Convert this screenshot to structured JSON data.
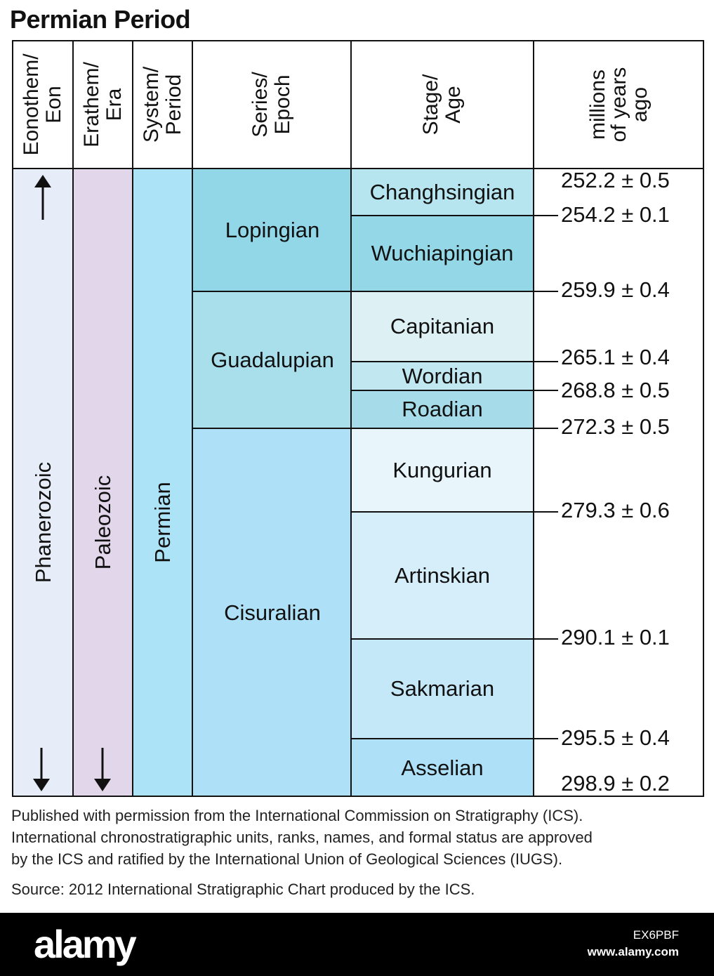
{
  "title": "Permian Period",
  "headers": {
    "eon": "Eonothem/\nEon",
    "era": "Erathem/\nEra",
    "period": "System/\nPeriod",
    "epoch": "Series/\nEpoch",
    "age": "Stage/\nAge",
    "mya": "millions\nof years\nago"
  },
  "eon": "Phanerozoic",
  "era": "Paleozoic",
  "period": "Permian",
  "epochs": [
    "Lopingian",
    "Guadalupian",
    "Cisuralian"
  ],
  "stages": [
    "Changhsingian",
    "Wuchiapingian",
    "Capitanian",
    "Wordian",
    "Roadian",
    "Kungurian",
    "Artinskian",
    "Sakmarian",
    "Asselian"
  ],
  "ages": [
    "252.2 ± 0.5",
    "254.2 ± 0.1",
    "259.9 ± 0.4",
    "265.1 ± 0.4",
    "268.8 ± 0.5",
    "272.3 ± 0.5",
    "279.3 ± 0.6",
    "290.1 ± 0.1",
    "295.5 ± 0.4",
    "298.9 ± 0.2"
  ],
  "colors": {
    "eon": "#e6ecf8",
    "era": "#e2d6ea",
    "period": "#ade3f7",
    "lopingian": "#92d7e8",
    "guadalupian": "#a9dfeb",
    "cisuralian": "#aee1f8",
    "changhsingian": "#b6e5ef",
    "wuchiapingian": "#94d8e8",
    "capitanian": "#ddf1f4",
    "wordian": "#c1e7f0",
    "roadian": "#a6dce9",
    "kungurian": "#e8f6fc",
    "artinskian": "#d5eef9",
    "sakmarian": "#c5e8f8",
    "asselian": "#aee1f8"
  },
  "footer": {
    "line1": "Published with permission from the International Commission on Stratigraphy (ICS).",
    "line2": "International chronostratigraphic units, ranks, names, and formal status are approved",
    "line3": "by the ICS and ratified by the International Union of Geological Sciences (IUGS).",
    "source": "Source: 2012 International Stratigraphic Chart produced by the ICS."
  },
  "watermark": {
    "logo": "alamy",
    "image_id": "EX6PBF",
    "site": "www.alamy.com"
  }
}
